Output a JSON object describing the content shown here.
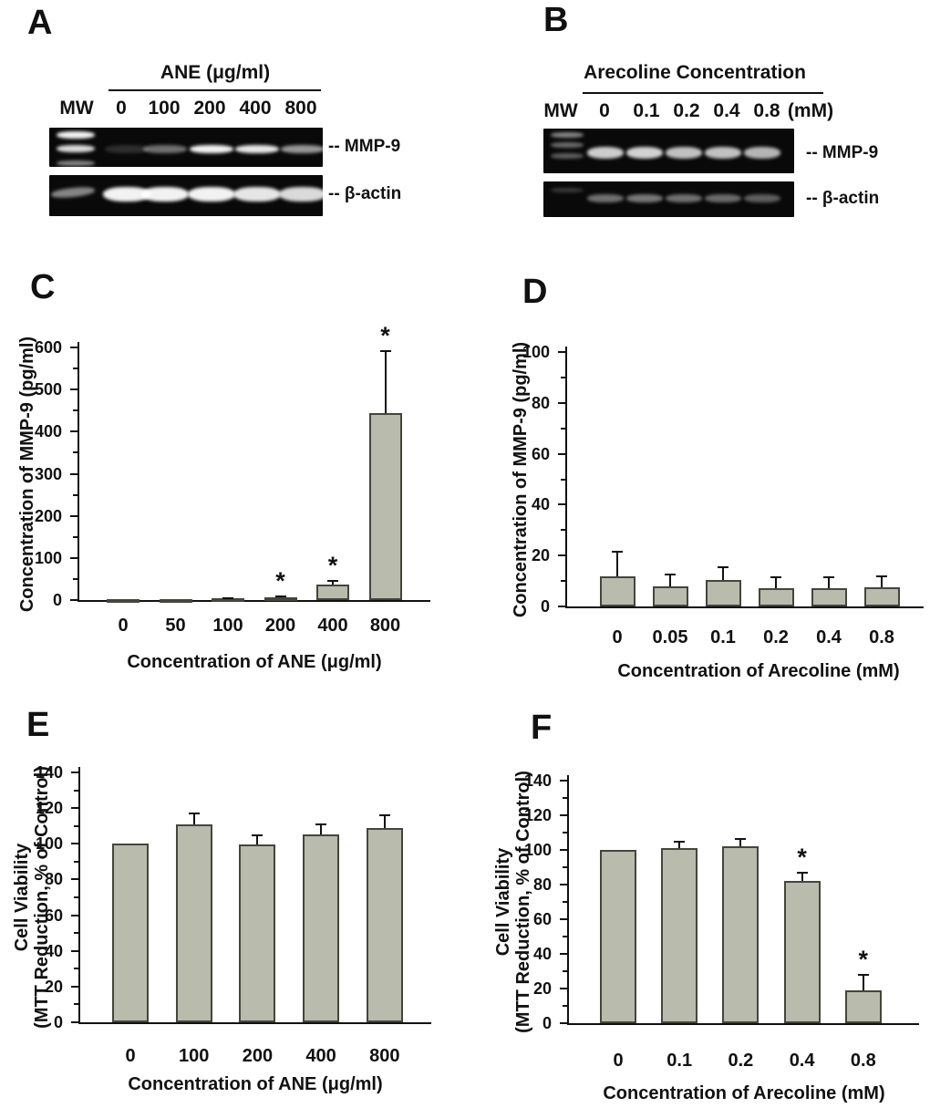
{
  "figure": {
    "panel_a": {
      "letter": "A",
      "header": "ANE (μg/ml)",
      "lane_labels": [
        "MW",
        "0",
        "100",
        "200",
        "400",
        "800"
      ],
      "gels": [
        {
          "label": "-- MMP-9",
          "mw_band_intensities": [
            0.95,
            0.85,
            0.5
          ],
          "lane_band_intensities": [
            0.15,
            0.42,
            0.95,
            0.9,
            0.58
          ]
        },
        {
          "label": "-- β-actin",
          "mw_band_intensities": [
            0.5
          ],
          "lane_band_intensities": [
            0.95,
            0.95,
            0.95,
            0.9,
            0.85
          ]
        }
      ]
    },
    "panel_b": {
      "letter": "B",
      "header": "Arecoline Concentration",
      "lane_labels": [
        "MW",
        "0",
        "0.1",
        "0.2",
        "0.4",
        "0.8",
        "(mM)"
      ],
      "gels": [
        {
          "label": "-- MMP-9",
          "mw_band_intensities": [
            0.5,
            0.4,
            0.35
          ],
          "lane_band_intensities": [
            0.8,
            0.82,
            0.75,
            0.75,
            0.7
          ]
        },
        {
          "label": "-- β-actin",
          "mw_band_intensities": [
            0.2
          ],
          "lane_band_intensities": [
            0.42,
            0.45,
            0.42,
            0.4,
            0.35
          ]
        }
      ]
    },
    "panel_letters": {
      "c": "C",
      "d": "D",
      "e": "E",
      "f": "F"
    }
  },
  "chart_data": [
    {
      "panel": "C",
      "type": "bar",
      "categories": [
        "0",
        "50",
        "100",
        "200",
        "400",
        "800"
      ],
      "values": [
        1,
        2,
        4,
        7,
        36,
        443
      ],
      "errors": [
        0,
        0,
        1,
        2,
        9,
        148
      ],
      "sig": [
        "",
        "",
        "",
        "*",
        "*",
        "*"
      ],
      "ylabel_lines": [
        "Concentration of MMP-9 (pg/ml)"
      ],
      "xlabel": "Concentration of ANE (μg/ml)",
      "ylim": [
        0,
        600
      ],
      "ytick_step": 100,
      "grid": false,
      "legend": "none"
    },
    {
      "panel": "D",
      "type": "bar",
      "categories": [
        "0",
        "0.05",
        "0.1",
        "0.2",
        "0.4",
        "0.8"
      ],
      "values": [
        12,
        8,
        10.5,
        7,
        7,
        7.5
      ],
      "errors": [
        9.5,
        4.5,
        5,
        4.5,
        4.5,
        4.5
      ],
      "sig": [
        "",
        "",
        "",
        "",
        "",
        ""
      ],
      "ylabel_lines": [
        "Concentration of MMP-9 (pg/ml)"
      ],
      "xlabel": "Concentration of Arecoline (mM)",
      "ylim": [
        0,
        100
      ],
      "ytick_step": 20,
      "grid": false,
      "legend": "none"
    },
    {
      "panel": "E",
      "type": "bar",
      "categories": [
        "0",
        "100",
        "200",
        "400",
        "800"
      ],
      "values": [
        100,
        111,
        99.5,
        105.5,
        109
      ],
      "errors": [
        0,
        6,
        5.5,
        5.5,
        7
      ],
      "sig": [
        "",
        "",
        "",
        "",
        ""
      ],
      "ylabel_lines": [
        "Cell Viability",
        "(MTT Reduction, % of Control)"
      ],
      "xlabel": "Concentration of ANE (μg/ml)",
      "ylim": [
        0,
        140
      ],
      "ytick_step": 20,
      "grid": false,
      "legend": "none"
    },
    {
      "panel": "F",
      "type": "bar",
      "categories": [
        "0",
        "0.1",
        "0.2",
        "0.4",
        "0.8"
      ],
      "values": [
        100,
        101,
        102,
        82,
        19
      ],
      "errors": [
        0,
        4,
        4.5,
        5,
        9
      ],
      "sig": [
        "",
        "",
        "",
        "*",
        "*"
      ],
      "ylabel_lines": [
        "Cell Viability",
        "(MTT Reduction, % of Control)"
      ],
      "xlabel": "Concentration of Arecoline (mM)",
      "ylim": [
        0,
        140
      ],
      "ytick_step": 20,
      "grid": false,
      "legend": "none"
    }
  ],
  "colors": {
    "bar_fill": "#b9bbac",
    "bar_border": "#45453d",
    "axis": "#111111",
    "text": "#111111",
    "gel_background": "#090909",
    "gel_band": "#ffffff",
    "page_background": "#ffffff"
  }
}
